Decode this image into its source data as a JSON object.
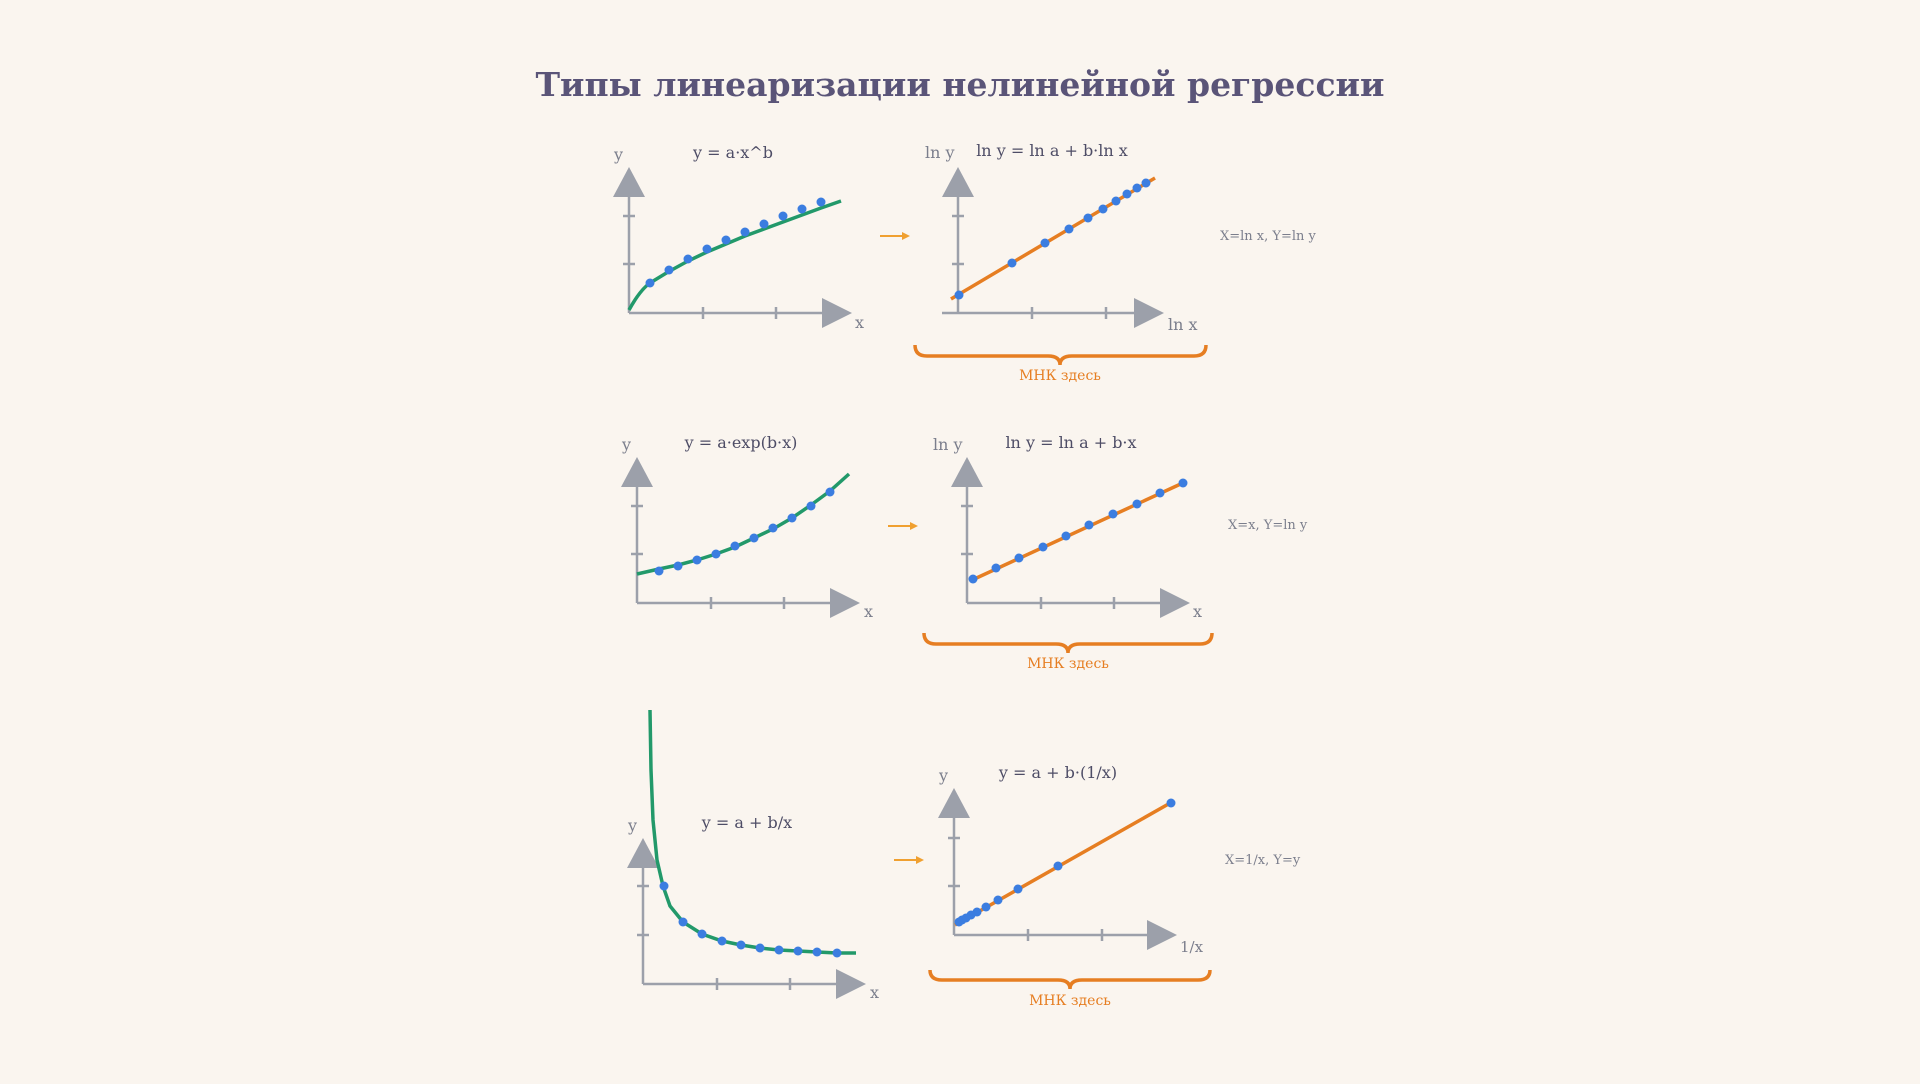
{
  "title": "Типы линеаризации нелинейной регрессии",
  "colors": {
    "background": "#faf5ef",
    "title": "#5a5478",
    "axis": "#9ca0aa",
    "axis_label": "#7b7e8c",
    "formula": "#4e4d66",
    "curve": "#22996a",
    "line": "#e67e22",
    "point": "#3b7de0",
    "arrow": "#f0a030",
    "brace": "#e67e22",
    "brace_label": "#e67e22",
    "transform": "#7b7e8c"
  },
  "rows": [
    {
      "id": "power",
      "left": {
        "formula": "y = a·x^b",
        "xlabel": "x",
        "ylabel": "y"
      },
      "right": {
        "formula": "ln y = ln a + b·ln x",
        "xlabel": "ln x",
        "ylabel": "ln y"
      },
      "brace_label": "МНК здесь",
      "transform": "X=ln x, Y=ln y"
    },
    {
      "id": "exponential",
      "left": {
        "formula": "y = a·exp(b·x)",
        "xlabel": "x",
        "ylabel": "y"
      },
      "right": {
        "formula": "ln y = ln a + b·x",
        "xlabel": "x",
        "ylabel": "ln y"
      },
      "brace_label": "МНК здесь",
      "transform": "X=x, Y=ln y"
    },
    {
      "id": "hyperbolic",
      "left": {
        "formula": "y = a + b/x",
        "xlabel": "x",
        "ylabel": "y"
      },
      "right": {
        "formula": "y = a + b·(1/x)",
        "xlabel": "1/x",
        "ylabel": "y"
      },
      "brace_label": "МНК здесь",
      "transform": "X=1/x, Y=y"
    }
  ]
}
